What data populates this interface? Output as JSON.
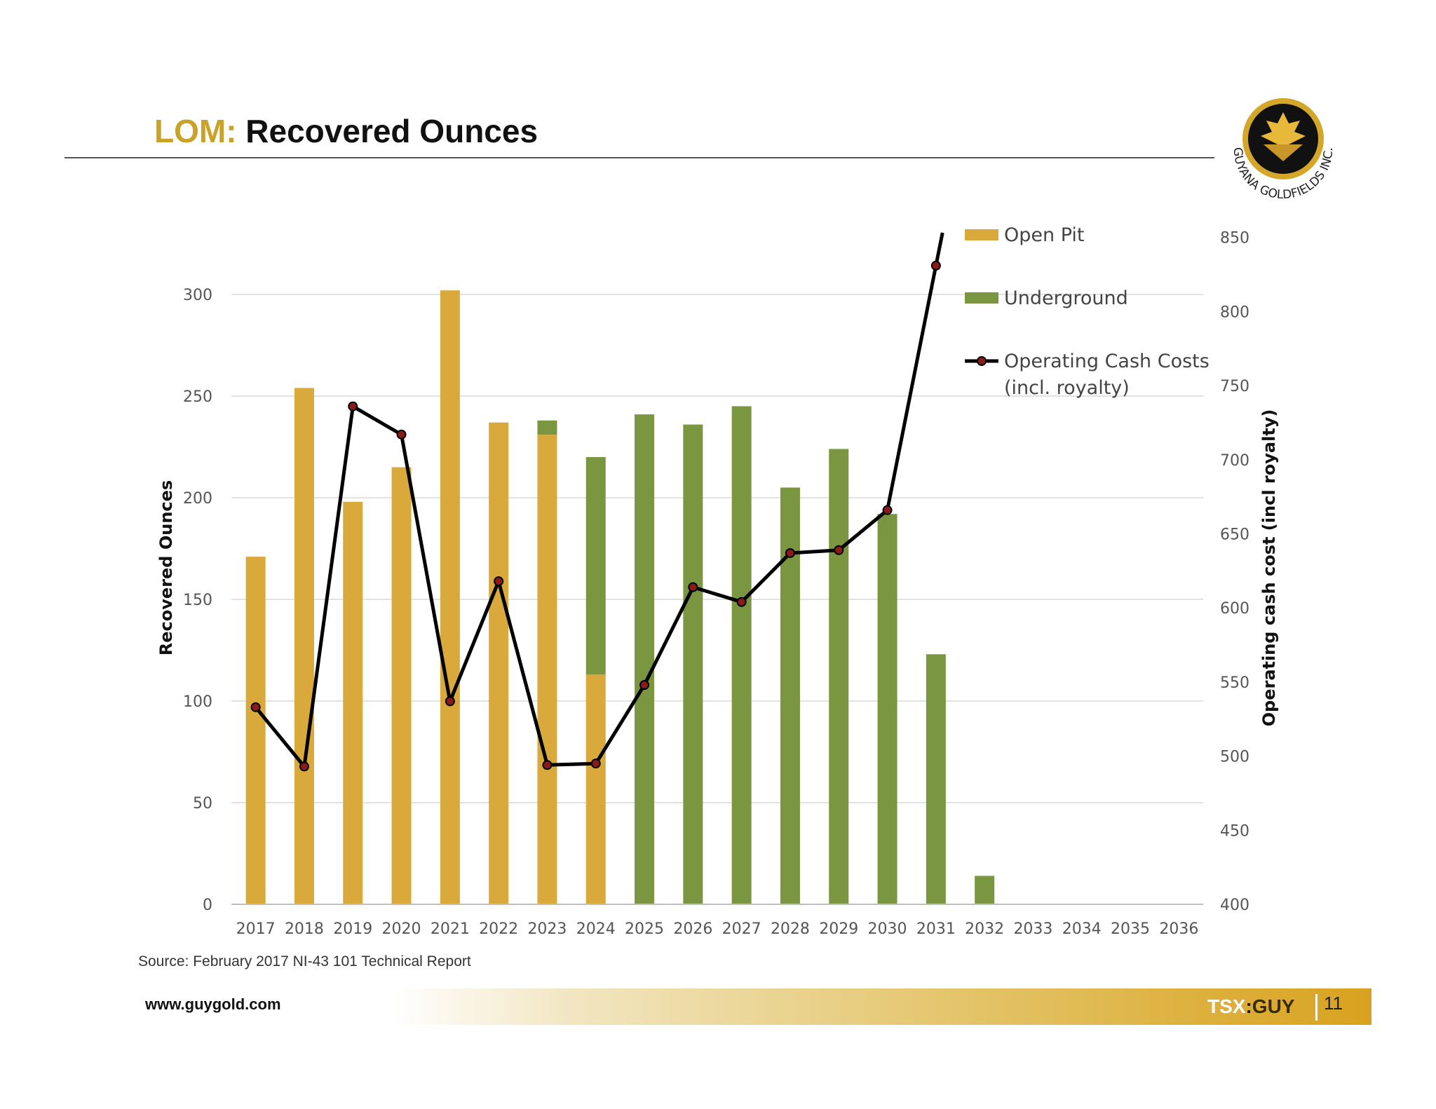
{
  "slide": {
    "title_prefix": "LOM:",
    "title_main": "Recovered Ounces",
    "source": "Source: February 2017 NI-43 101 Technical Report",
    "website": "www.guygold.com",
    "ticker_exchange": "TSX",
    "ticker_separator": ":",
    "ticker_symbol": "GUY",
    "page_number": "11",
    "logo_text": "GUYANA GOLDFIELDS INC."
  },
  "colors": {
    "accent_gold": "#c9a227",
    "open_pit": "#d9a93c",
    "underground": "#7a9641",
    "cost_line": "#000000",
    "cost_marker": "#8b1a1a",
    "footer_gold": "#d8a21e"
  },
  "chart_data": {
    "type": "bar",
    "stacked": true,
    "title": "",
    "xlabel": "",
    "ylabel": "Recovered Ounces",
    "y2label": "Operating cash cost (incl royalty)",
    "ylim": [
      0,
      300
    ],
    "y_ticks": [
      "0",
      "50",
      "100",
      "150",
      "200",
      "250",
      "300"
    ],
    "y2lim": [
      400,
      850
    ],
    "y2_ticks": [
      "400",
      "450",
      "500",
      "550",
      "600",
      "650",
      "700",
      "750",
      "800",
      "850"
    ],
    "grid": true,
    "legend_position": "top-right",
    "categories": [
      "2017",
      "2018",
      "2019",
      "2020",
      "2021",
      "2022",
      "2023",
      "2024",
      "2025",
      "2026",
      "2027",
      "2028",
      "2029",
      "2030",
      "2031",
      "2032",
      "2033",
      "2034",
      "2035",
      "2036"
    ],
    "series": [
      {
        "name": "Open Pit",
        "type": "bar",
        "axis": "left",
        "values": [
          171,
          254,
          198,
          215,
          302,
          237,
          231,
          113,
          0,
          0,
          0,
          0,
          0,
          0,
          0,
          0,
          0,
          0,
          0,
          0
        ]
      },
      {
        "name": "Underground",
        "type": "bar",
        "axis": "left",
        "values": [
          0,
          0,
          0,
          0,
          0,
          0,
          7,
          107,
          241,
          236,
          245,
          205,
          224,
          192,
          123,
          14,
          0,
          0,
          0,
          0
        ]
      },
      {
        "name": "Operating Cash Costs (incl. royalty)",
        "type": "line",
        "axis": "right",
        "values": [
          533,
          493,
          736,
          717,
          537,
          618,
          494,
          495,
          548,
          614,
          604,
          637,
          639,
          666,
          831,
          null,
          null,
          null,
          null,
          null
        ],
        "offscale_end": 870
      }
    ],
    "legend": [
      {
        "label_lines": [
          "Open Pit"
        ]
      },
      {
        "label_lines": [
          "Underground"
        ]
      },
      {
        "label_lines": [
          "Operating Cash Costs",
          "(incl. royalty)"
        ]
      }
    ]
  }
}
